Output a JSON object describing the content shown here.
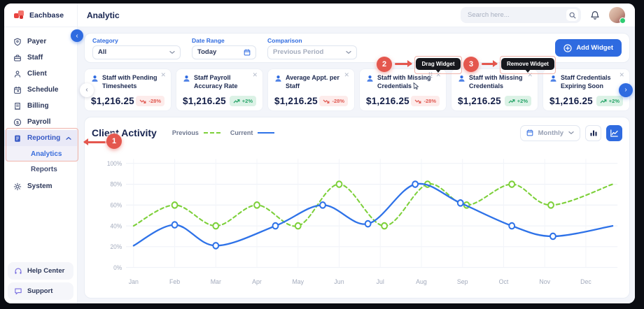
{
  "brand": {
    "name": "Eachbase"
  },
  "header": {
    "title": "Analytic",
    "search_placeholder": "Search here...",
    "icons": [
      "search-icon",
      "bell-icon",
      "avatar"
    ]
  },
  "sidebar": {
    "items": [
      {
        "label": "Payer",
        "icon": "payer-icon"
      },
      {
        "label": "Staff",
        "icon": "staff-icon"
      },
      {
        "label": "Client",
        "icon": "client-icon"
      },
      {
        "label": "Schedule",
        "icon": "schedule-icon"
      },
      {
        "label": "Billing",
        "icon": "billing-icon"
      },
      {
        "label": "Payroll",
        "icon": "payroll-icon"
      },
      {
        "label": "Reporting",
        "icon": "reporting-icon",
        "active": true,
        "expanded": true
      },
      {
        "label": "System",
        "icon": "system-icon"
      }
    ],
    "reporting_children": [
      {
        "label": "Analytics",
        "active": true
      },
      {
        "label": "Reports",
        "active": false
      }
    ],
    "footer_items": [
      {
        "label": "Help Center",
        "icon": "help-center-icon"
      },
      {
        "label": "Support",
        "icon": "support-icon"
      }
    ]
  },
  "filters": {
    "category_label": "Category",
    "category_value": "All",
    "date_range_label": "Date Range",
    "date_range_value": "Today",
    "comparison_label": "Comparison",
    "comparison_value": "Previous Period",
    "add_widget_label": "Add Widget"
  },
  "widgets": {
    "cards": [
      {
        "title": "Staff with Pending Timesheets",
        "value": "$1,216.25",
        "change": "-28%",
        "trend": "down"
      },
      {
        "title": "Staff Payroll Accuracy Rate",
        "value": "$1,216.25",
        "change": "+2%",
        "trend": "up"
      },
      {
        "title": "Average Appt. per Staff",
        "value": "$1,216.25",
        "change": "-28%",
        "trend": "down"
      },
      {
        "title": "Staff with Missing Credentials",
        "value": "$1,216.25",
        "change": "-28%",
        "trend": "down",
        "drag": true
      },
      {
        "title": "Staff with Missing Credentials",
        "value": "$1,216.25",
        "change": "+2%",
        "trend": "up"
      },
      {
        "title": "Staff Credentials Expiring Soon",
        "value": "$1,216.25",
        "change": "+2%",
        "trend": "up"
      }
    ]
  },
  "annotations": {
    "step1": "1",
    "step2": "2",
    "step3": "3",
    "drag_tooltip": "Drag Widget",
    "remove_tooltip": "Remove Widget"
  },
  "chart": {
    "title": "Client Activity",
    "legend_previous": "Previous",
    "legend_current": "Current",
    "period_value": "Monthly"
  },
  "chart_data": {
    "type": "line",
    "title": "Client Activity",
    "x_labels": [
      "Jan",
      "Feb",
      "Mar",
      "Apr",
      "May",
      "Jun",
      "Jul",
      "Aug",
      "Sep",
      "Oct",
      "Nov",
      "Dec"
    ],
    "y_ticks": [
      "0%",
      "20%",
      "40%",
      "60%",
      "80%",
      "100%"
    ],
    "ylim": [
      0,
      100
    ],
    "y_step": 20,
    "grid": true,
    "legend_position": "top-left-inline",
    "series": [
      {
        "name": "Previous",
        "style": "dashed",
        "color": "#7dd03a",
        "points": [
          [
            0,
            40
          ],
          [
            1,
            60
          ],
          [
            2,
            40
          ],
          [
            3,
            60
          ],
          [
            4,
            40
          ],
          [
            5,
            80
          ],
          [
            6.1,
            40
          ],
          [
            7.15,
            80
          ],
          [
            8.1,
            60
          ],
          [
            9.2,
            80
          ],
          [
            10.15,
            60
          ],
          [
            11.65,
            80
          ]
        ]
      },
      {
        "name": "Current",
        "style": "solid",
        "color": "#2e72e8",
        "points": [
          [
            0,
            21
          ],
          [
            1,
            41
          ],
          [
            2,
            21
          ],
          [
            3.45,
            40
          ],
          [
            4.6,
            60
          ],
          [
            5.7,
            42
          ],
          [
            6.85,
            80
          ],
          [
            7.95,
            62
          ],
          [
            9.2,
            40
          ],
          [
            10.2,
            30
          ],
          [
            11.65,
            40
          ]
        ]
      }
    ]
  }
}
